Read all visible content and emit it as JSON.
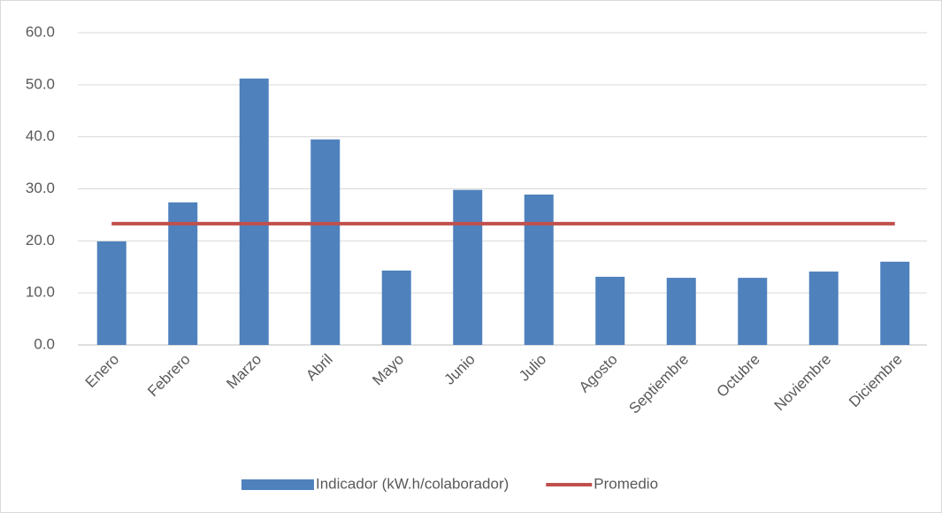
{
  "chart_data": {
    "type": "bar",
    "categories": [
      "Enero",
      "Febrero",
      "Marzo",
      "Abril",
      "Mayo",
      "Junio",
      "Julio",
      "Agosto",
      "Septiembre",
      "Octubre",
      "Noviembre",
      "Diciembre"
    ],
    "series": [
      {
        "name": "Indicador (kW.h/colaborador)",
        "color": "#4f81bd",
        "type": "bar",
        "values": [
          19.9,
          27.4,
          51.2,
          39.5,
          14.3,
          29.8,
          28.9,
          13.1,
          12.9,
          12.9,
          14.1,
          16.0
        ]
      },
      {
        "name": "Promedio",
        "color": "#c0504d",
        "type": "line",
        "values": [
          23.3,
          23.3,
          23.3,
          23.3,
          23.3,
          23.3,
          23.3,
          23.3,
          23.3,
          23.3,
          23.3,
          23.3
        ]
      }
    ],
    "ylim": [
      0,
      60
    ],
    "yticks": [
      {
        "value": 0,
        "label": "0.0"
      },
      {
        "value": 10,
        "label": "10.0"
      },
      {
        "value": 20,
        "label": "20.0"
      },
      {
        "value": 30,
        "label": "30.0"
      },
      {
        "value": 40,
        "label": "40.0"
      },
      {
        "value": 50,
        "label": "50.0"
      },
      {
        "value": 60,
        "label": "60.0"
      }
    ],
    "grid": true,
    "legend": "bottom"
  }
}
